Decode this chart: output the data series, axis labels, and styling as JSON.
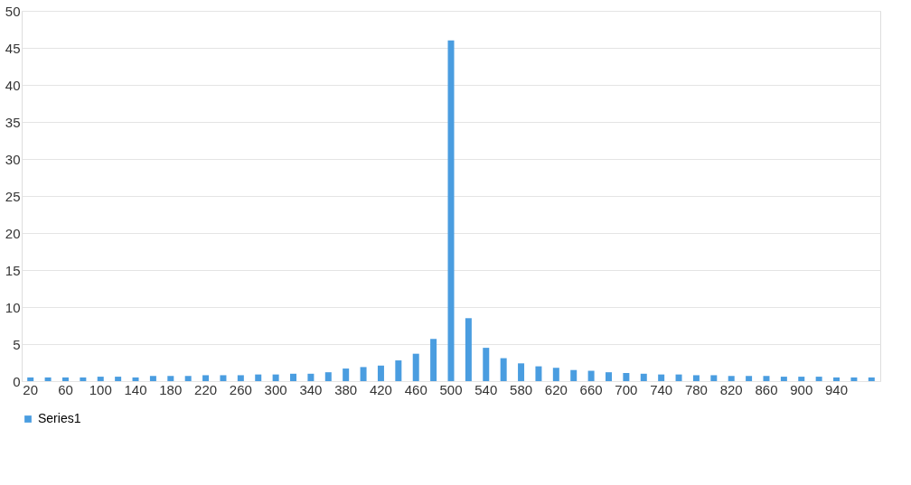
{
  "chart_data": {
    "type": "bar",
    "categories": [
      "20",
      null,
      "60",
      null,
      "100",
      null,
      "140",
      null,
      "180",
      null,
      "220",
      null,
      "260",
      null,
      "300",
      null,
      "340",
      null,
      "380",
      null,
      "420",
      null,
      "460",
      null,
      "500",
      null,
      "540",
      null,
      "580",
      null,
      "620",
      null,
      "660",
      null,
      "700",
      null,
      "740",
      null,
      "780",
      null,
      "820",
      null,
      "860",
      null,
      "900",
      null,
      "940",
      null,
      null
    ],
    "series": [
      {
        "name": "Series1",
        "color": "#4a9de0",
        "values": [
          0.5,
          0.5,
          0.5,
          0.5,
          0.6,
          0.6,
          0.5,
          0.7,
          0.7,
          0.7,
          0.8,
          0.8,
          0.8,
          0.9,
          0.9,
          1.0,
          1.0,
          1.2,
          1.7,
          1.9,
          2.1,
          2.8,
          3.7,
          5.7,
          46,
          8.5,
          4.5,
          3.1,
          2.4,
          2.0,
          1.8,
          1.5,
          1.4,
          1.2,
          1.1,
          1.0,
          0.9,
          0.9,
          0.8,
          0.8,
          0.7,
          0.7,
          0.7,
          0.6,
          0.6,
          0.6,
          0.5,
          0.5,
          0.5
        ]
      }
    ],
    "ylim": [
      0,
      50
    ],
    "yticks": [
      0,
      5,
      10,
      15,
      20,
      25,
      30,
      35,
      40,
      45,
      50
    ],
    "grid": "y",
    "legend": "bottom"
  }
}
